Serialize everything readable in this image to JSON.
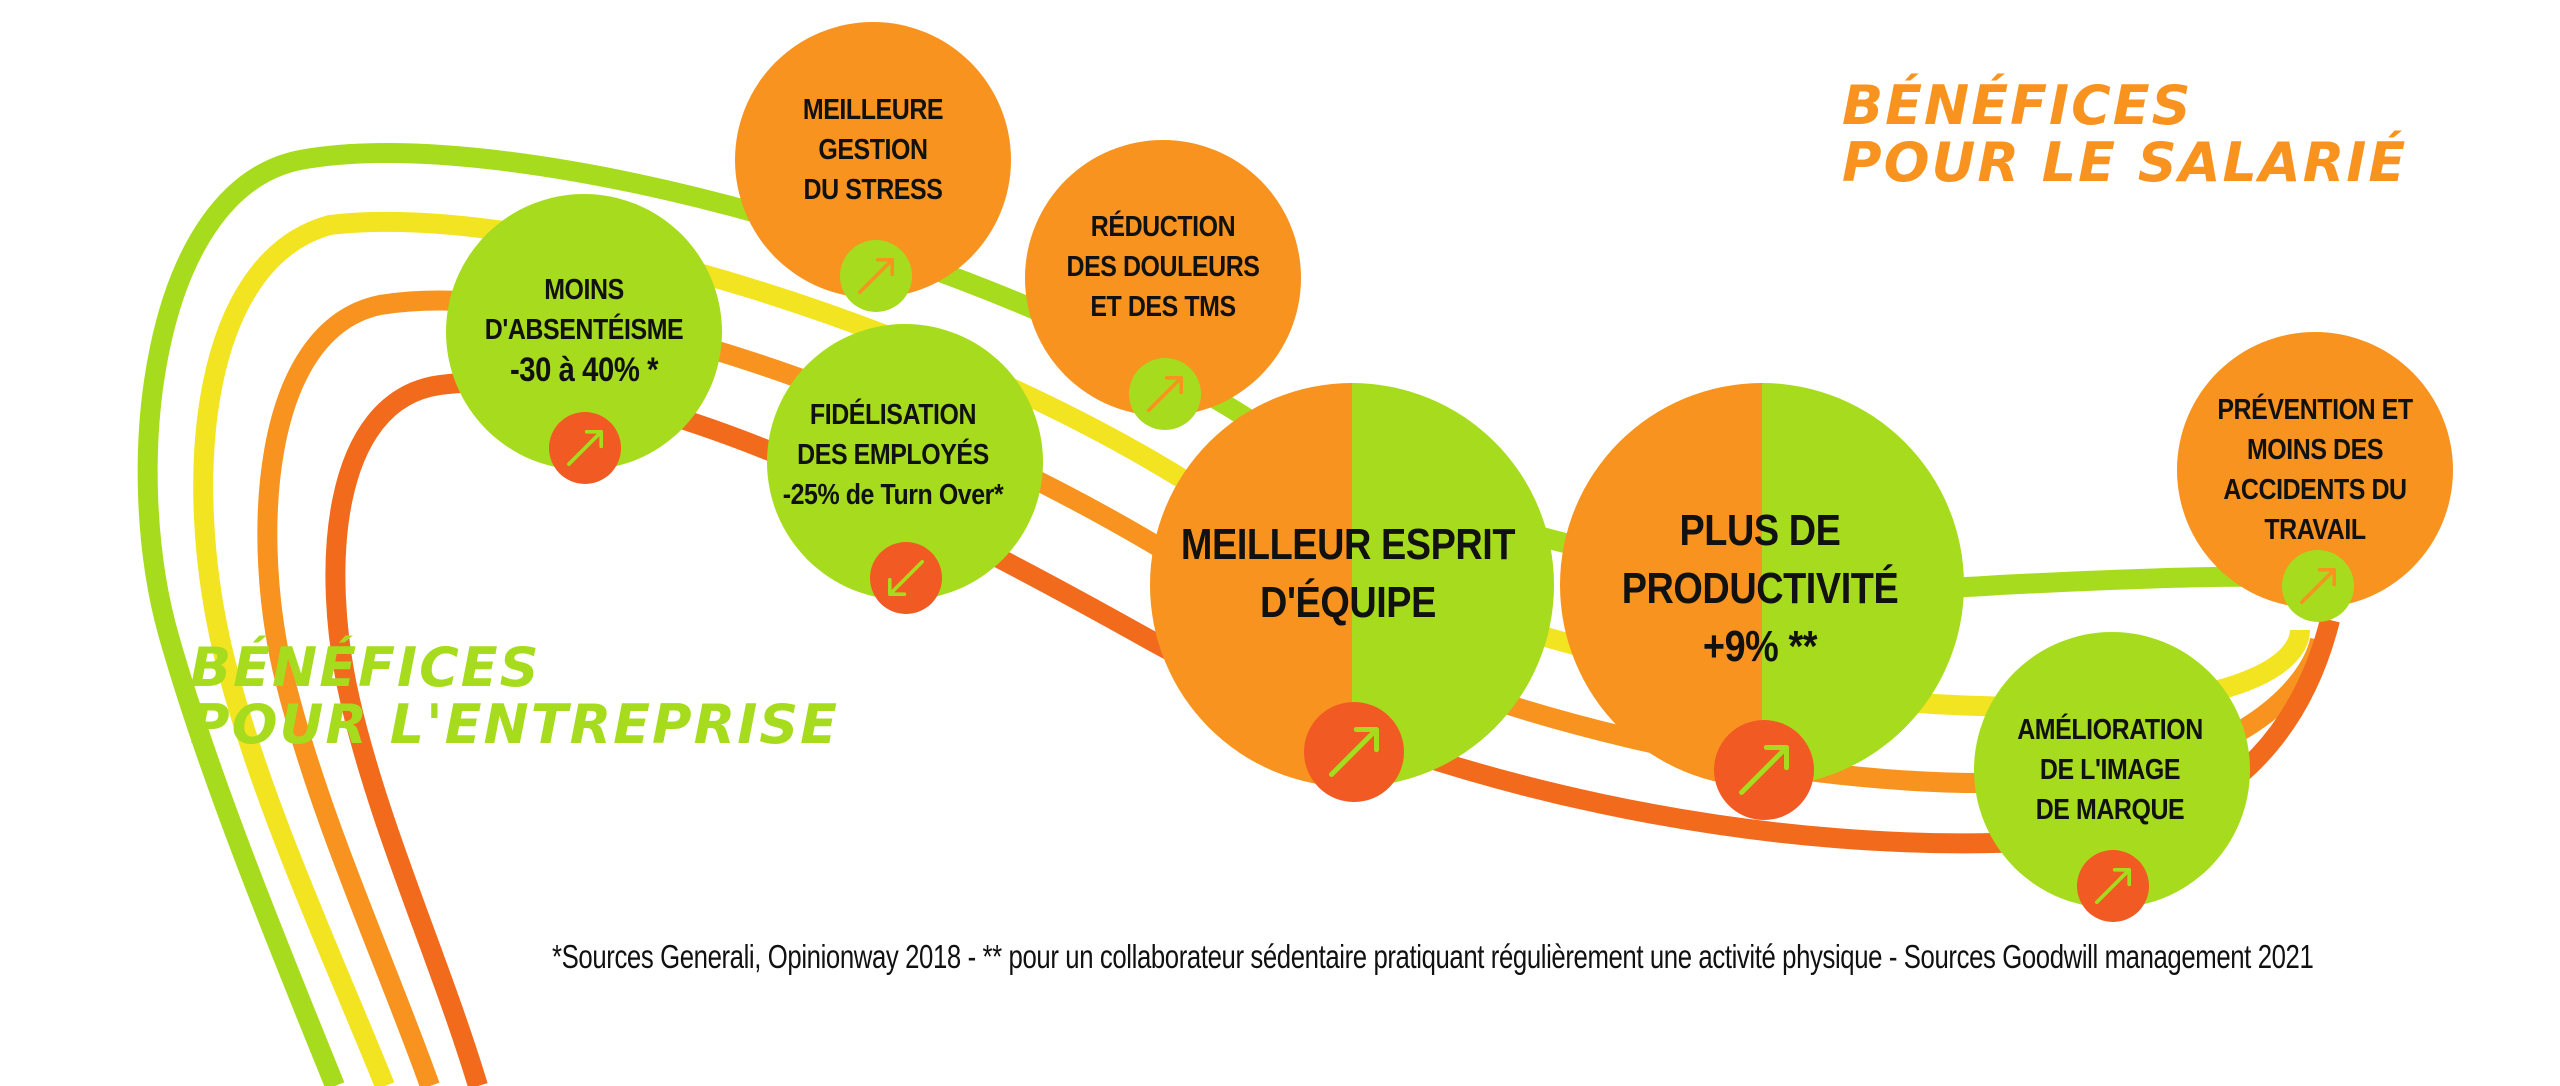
{
  "colors": {
    "lime": "#a6dc1d",
    "yellow": "#f2e420",
    "orange": "#f7931e",
    "red_orange": "#f26a1b",
    "dark_orange": "#f15a22",
    "text": "#111111"
  },
  "headings": {
    "salarie": {
      "line1": "BÉNÉFICES",
      "line2": "POUR LE SALARIÉ",
      "color": "#f7931e"
    },
    "entreprise": {
      "line1": "BÉNÉFICES",
      "line2": "POUR L'ENTREPRISE",
      "color": "#a6dc1d"
    }
  },
  "circles": {
    "absenteisme": {
      "lines": [
        "MOINS",
        "D'ABSENTÉISME",
        "-30 à 40% *"
      ],
      "fill": "#a6dc1d",
      "arrow_icon": "arrow-up-right-icon"
    },
    "stress": {
      "lines": [
        "MEILLEURE",
        "GESTION",
        "DU STRESS"
      ],
      "fill": "#f7931e",
      "arrow_icon": "arrow-up-right-icon"
    },
    "douleurs": {
      "lines": [
        "RÉDUCTION",
        "DES DOULEURS",
        "ET DES TMS"
      ],
      "fill": "#f7931e",
      "arrow_icon": "arrow-up-right-icon"
    },
    "fidelisation": {
      "lines": [
        "FIDÉLISATION",
        "DES EMPLOYÉS",
        "-25% de Turn Over*"
      ],
      "fill": "#a6dc1d",
      "arrow_icon": "arrow-down-left-icon"
    },
    "esprit": {
      "lines": [
        "MEILLEUR ESPRIT",
        "D'ÉQUIPE"
      ],
      "fill_left": "#f7931e",
      "fill_right": "#a6dc1d",
      "arrow_icon": "arrow-up-right-icon"
    },
    "productivite": {
      "lines": [
        "PLUS DE",
        "PRODUCTIVITÉ",
        "+9% **"
      ],
      "fill_left": "#f7931e",
      "fill_right": "#a6dc1d",
      "arrow_icon": "arrow-up-right-icon"
    },
    "prevention": {
      "lines": [
        "PRÉVENTION ET",
        "MOINS DES",
        "ACCIDENTS DU",
        "TRAVAIL"
      ],
      "fill": "#f7931e",
      "arrow_icon": "arrow-up-right-icon"
    },
    "image": {
      "lines": [
        "AMÉLIORATION",
        "DE L'IMAGE",
        "DE MARQUE"
      ],
      "fill": "#a6dc1d",
      "arrow_icon": "arrow-up-right-icon"
    }
  },
  "footnote": "*Sources Generali, Opinionway 2018 -  ** pour un collaborateur sédentaire pratiquant régulièrement une activité physique - Sources Goodwill management 2021"
}
